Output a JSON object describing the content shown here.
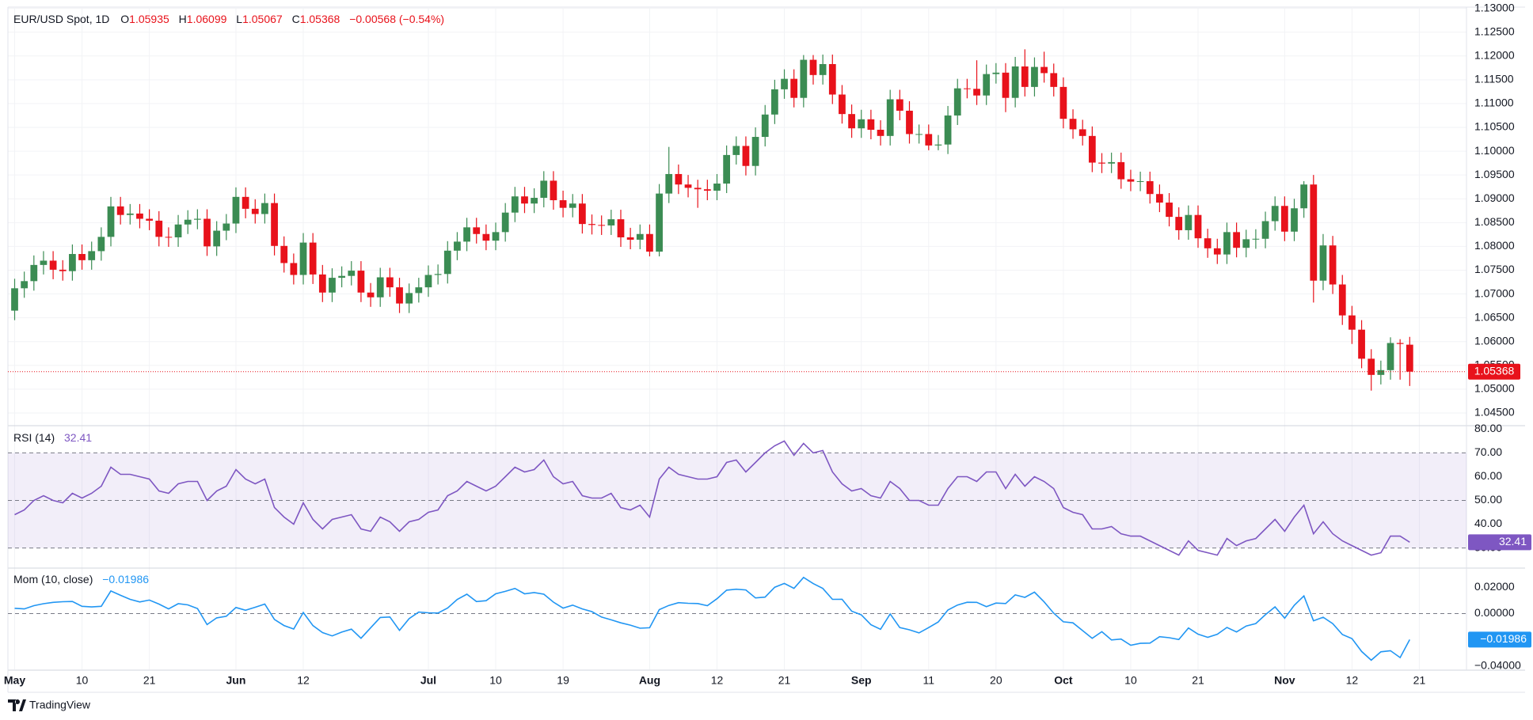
{
  "chart_data": {
    "type": "candlestick",
    "title": "EUR/USD Spot, 1D",
    "ohlc_labels": [
      "O",
      "H",
      "L",
      "C"
    ],
    "change_label": "−0.00568 (−0.54%)",
    "up_color": "#3b8c53",
    "down_color": "#e8121b",
    "grid": true,
    "open": [
      1.0665,
      1.0712,
      1.0727,
      1.0761,
      1.077,
      1.0751,
      1.0748,
      1.0784,
      1.0771,
      1.079,
      1.082,
      1.0884,
      1.0866,
      1.0869,
      1.0858,
      1.0854,
      1.082,
      1.0819,
      1.0846,
      1.0856,
      1.0858,
      1.08,
      1.0833,
      1.0848,
      1.0904,
      1.0879,
      1.0868,
      1.0891,
      1.0801,
      1.0765,
      1.074,
      1.0808,
      1.0741,
      1.0703,
      1.0734,
      1.0738,
      1.0749,
      1.0703,
      1.0693,
      1.0735,
      1.0714,
      1.068,
      1.0702,
      1.0714,
      1.074,
      1.0742,
      1.0791,
      1.081,
      1.084,
      1.0826,
      1.0812,
      1.083,
      1.0871,
      1.0905,
      1.089,
      1.0902,
      1.0938,
      1.0897,
      1.0881,
      1.089,
      1.0847,
      1.0845,
      1.0844,
      1.0857,
      1.0819,
      1.0814,
      1.0826,
      1.0789,
      1.0911,
      1.0952,
      1.093,
      1.0923,
      1.092,
      1.0917,
      1.0932,
      1.0992,
      1.1011,
      1.0969,
      1.103,
      1.1077,
      1.113,
      1.1152,
      1.1112,
      1.1192,
      1.116,
      1.1183,
      1.1119,
      1.1078,
      1.1048,
      1.1067,
      1.1045,
      1.1032,
      1.1109,
      1.1085,
      1.1036,
      1.1036,
      1.1012,
      1.1014,
      1.1075,
      1.1132,
      1.1131,
      1.1117,
      1.1162,
      1.1165,
      1.1112,
      1.1178,
      1.1135,
      1.1177,
      1.1164,
      1.1135,
      1.1068,
      1.1046,
      1.1032,
      1.0976,
      1.0974,
      1.0977,
      1.0941,
      1.0936,
      1.0937,
      1.091,
      1.0892,
      1.0862,
      1.0834,
      1.0866,
      1.0817,
      1.0796,
      1.0783,
      1.083,
      1.0797,
      1.0815,
      1.0816,
      1.0853,
      1.0885,
      1.0831,
      1.088,
      1.093,
      1.0728,
      1.0802,
      1.072,
      1.0655,
      1.0625,
      1.0564,
      1.053,
      1.054,
      1.0597,
      1.05935
    ],
    "high": [
      1.0732,
      1.0747,
      1.0781,
      1.079,
      1.079,
      1.0771,
      1.0804,
      1.0804,
      1.081,
      1.084,
      1.0904,
      1.0904,
      1.0889,
      1.0889,
      1.0878,
      1.0874,
      1.084,
      1.0866,
      1.0876,
      1.0878,
      1.0878,
      1.0853,
      1.0868,
      1.0924,
      1.0924,
      1.0899,
      1.0911,
      1.0911,
      1.0821,
      1.0785,
      1.0828,
      1.0828,
      1.0761,
      1.0754,
      1.0758,
      1.0769,
      1.0769,
      1.0723,
      1.0755,
      1.0755,
      1.0734,
      1.0722,
      1.0734,
      1.076,
      1.0762,
      1.0811,
      1.083,
      1.086,
      1.086,
      1.0846,
      1.085,
      1.0891,
      1.0925,
      1.0925,
      1.0922,
      1.0958,
      1.0958,
      1.0917,
      1.091,
      1.091,
      1.0867,
      1.0865,
      1.0877,
      1.0877,
      1.0839,
      1.0846,
      1.0846,
      1.0931,
      1.1009,
      1.0972,
      1.095,
      1.094,
      1.094,
      1.0952,
      1.1012,
      1.1031,
      1.1031,
      1.105,
      1.1097,
      1.115,
      1.1172,
      1.1172,
      1.1202,
      1.1202,
      1.1203,
      1.1203,
      1.1139,
      1.1098,
      1.1087,
      1.1087,
      1.1065,
      1.1129,
      1.1129,
      1.1105,
      1.1056,
      1.1056,
      1.1034,
      1.1095,
      1.1152,
      1.1152,
      1.1191,
      1.1182,
      1.1185,
      1.1185,
      1.1198,
      1.1214,
      1.1197,
      1.1209,
      1.1184,
      1.1155,
      1.1088,
      1.1066,
      1.1052,
      1.0996,
      1.0997,
      1.0997,
      1.0961,
      1.0957,
      1.0957,
      1.093,
      1.0912,
      1.0882,
      1.0886,
      1.0886,
      1.0837,
      1.0816,
      1.085,
      1.085,
      1.0835,
      1.0836,
      1.0873,
      1.0905,
      1.0905,
      1.09,
      1.0937,
      1.095,
      1.0826,
      1.0822,
      1.074,
      1.0675,
      1.0645,
      1.0584,
      1.056,
      1.0609,
      1.0605,
      1.06099
    ],
    "low": [
      1.0645,
      1.0692,
      1.0707,
      1.0741,
      1.0731,
      1.0728,
      1.0728,
      1.0751,
      1.0751,
      1.077,
      1.08,
      1.0846,
      1.0846,
      1.0838,
      1.0834,
      1.08,
      1.0799,
      1.0799,
      1.0826,
      1.0836,
      1.078,
      1.078,
      1.0813,
      1.0828,
      1.0859,
      1.0848,
      1.0848,
      1.0781,
      1.0745,
      1.072,
      1.072,
      1.0721,
      1.0683,
      1.0683,
      1.0714,
      1.0718,
      1.0683,
      1.0673,
      1.0673,
      1.0694,
      1.066,
      1.066,
      1.0682,
      1.0694,
      1.072,
      1.0722,
      1.0771,
      1.079,
      1.0806,
      1.0792,
      1.0792,
      1.081,
      1.0851,
      1.087,
      1.087,
      1.0882,
      1.0877,
      1.0861,
      1.0861,
      1.0827,
      1.0825,
      1.0824,
      1.0824,
      1.0799,
      1.0794,
      1.0794,
      1.0779,
      1.0779,
      1.0891,
      1.091,
      1.0903,
      1.0881,
      1.0897,
      1.0897,
      1.0912,
      1.0972,
      1.0949,
      1.0949,
      1.101,
      1.1057,
      1.111,
      1.1092,
      1.1092,
      1.114,
      1.114,
      1.1099,
      1.1058,
      1.1028,
      1.1028,
      1.1025,
      1.1012,
      1.1012,
      1.1065,
      1.1016,
      1.1016,
      1.1002,
      1.1002,
      1.0994,
      1.1055,
      1.1111,
      1.1097,
      1.1097,
      1.1142,
      1.1082,
      1.1092,
      1.1115,
      1.1115,
      1.1144,
      1.1115,
      1.1048,
      1.1026,
      1.1012,
      1.0956,
      1.0954,
      1.0954,
      1.0921,
      1.0916,
      1.0916,
      1.089,
      1.0872,
      1.0842,
      1.0814,
      1.0814,
      1.0797,
      1.0776,
      1.0763,
      1.0763,
      1.0777,
      1.0777,
      1.0795,
      1.0796,
      1.0833,
      1.0811,
      1.0811,
      1.086,
      1.0682,
      1.0708,
      1.07,
      1.0635,
      1.0595,
      1.0544,
      1.0497,
      1.051,
      1.052,
      1.052,
      1.05067
    ],
    "close": [
      1.0712,
      1.0727,
      1.0761,
      1.077,
      1.0751,
      1.0748,
      1.0784,
      1.0771,
      1.079,
      1.082,
      1.0884,
      1.0866,
      1.0869,
      1.0858,
      1.0854,
      1.082,
      1.0819,
      1.0846,
      1.0856,
      1.0858,
      1.08,
      1.0833,
      1.0848,
      1.0904,
      1.0879,
      1.0868,
      1.0891,
      1.0801,
      1.0765,
      1.074,
      1.0808,
      1.0741,
      1.0703,
      1.0734,
      1.0738,
      1.0749,
      1.0703,
      1.0693,
      1.0735,
      1.0714,
      1.068,
      1.0702,
      1.0714,
      1.074,
      1.0742,
      1.0791,
      1.081,
      1.084,
      1.0826,
      1.0812,
      1.083,
      1.0871,
      1.0905,
      1.089,
      1.0902,
      1.0938,
      1.0897,
      1.0881,
      1.089,
      1.0847,
      1.0845,
      1.0844,
      1.0857,
      1.0819,
      1.0814,
      1.0826,
      1.0789,
      1.0911,
      1.0952,
      1.093,
      1.0923,
      1.092,
      1.0917,
      1.0932,
      1.0992,
      1.1011,
      1.0969,
      1.103,
      1.1077,
      1.113,
      1.1152,
      1.1112,
      1.1192,
      1.116,
      1.1183,
      1.1119,
      1.1078,
      1.1048,
      1.1067,
      1.1045,
      1.1032,
      1.1109,
      1.1085,
      1.1036,
      1.1036,
      1.1012,
      1.1014,
      1.1075,
      1.1132,
      1.1131,
      1.1117,
      1.1162,
      1.1165,
      1.1112,
      1.1178,
      1.1135,
      1.1177,
      1.1164,
      1.1135,
      1.1068,
      1.1046,
      1.1032,
      1.0976,
      1.0974,
      1.0977,
      1.0941,
      1.0936,
      1.0937,
      1.091,
      1.0892,
      1.0862,
      1.0834,
      1.0866,
      1.0817,
      1.0796,
      1.0783,
      1.083,
      1.0797,
      1.0815,
      1.0816,
      1.0853,
      1.0885,
      1.0831,
      1.088,
      1.093,
      1.0728,
      1.0802,
      1.072,
      1.0655,
      1.0625,
      1.0564,
      1.053,
      1.054,
      1.0597,
      1.0595,
      1.05368
    ],
    "xlim": [
      -0.7,
      150.9
    ],
    "xticks": [
      {
        "value": 0,
        "label": "May"
      },
      {
        "value": 7,
        "label": "10"
      },
      {
        "value": 14,
        "label": "21"
      },
      {
        "value": 23,
        "label": "Jun"
      },
      {
        "value": 30,
        "label": "12"
      },
      {
        "value": 43,
        "label": "Jul"
      },
      {
        "value": 50,
        "label": "10"
      },
      {
        "value": 57,
        "label": "19"
      },
      {
        "value": 66,
        "label": "Aug"
      },
      {
        "value": 73,
        "label": "12"
      },
      {
        "value": 80,
        "label": "21"
      },
      {
        "value": 88,
        "label": "Sep"
      },
      {
        "value": 95,
        "label": "11"
      },
      {
        "value": 102,
        "label": "20"
      },
      {
        "value": 109,
        "label": "Oct"
      },
      {
        "value": 116,
        "label": "10"
      },
      {
        "value": 123,
        "label": "21"
      },
      {
        "value": 132,
        "label": "Nov"
      },
      {
        "value": 139,
        "label": "12"
      },
      {
        "value": 146,
        "label": "21"
      }
    ],
    "ylim": [
      1.0425,
      1.1301
    ],
    "yticks": [
      {
        "value": 1.045,
        "label": "1.04500"
      },
      {
        "value": 1.05,
        "label": "1.05000"
      },
      {
        "value": 1.055,
        "label": "1.05500"
      },
      {
        "value": 1.06,
        "label": "1.06000"
      },
      {
        "value": 1.065,
        "label": "1.06500"
      },
      {
        "value": 1.07,
        "label": "1.07000"
      },
      {
        "value": 1.075,
        "label": "1.07500"
      },
      {
        "value": 1.08,
        "label": "1.08000"
      },
      {
        "value": 1.085,
        "label": "1.08500"
      },
      {
        "value": 1.09,
        "label": "1.09000"
      },
      {
        "value": 1.095,
        "label": "1.09500"
      },
      {
        "value": 1.1,
        "label": "1.10000"
      },
      {
        "value": 1.105,
        "label": "1.10500"
      },
      {
        "value": 1.11,
        "label": "1.11000"
      },
      {
        "value": 1.115,
        "label": "1.11500"
      },
      {
        "value": 1.12,
        "label": "1.12000"
      },
      {
        "value": 1.125,
        "label": "1.12500"
      },
      {
        "value": 1.13,
        "label": "1.13000"
      }
    ],
    "indicators": [
      {
        "type": "line",
        "title": "RSI (14)",
        "color": "#7e57c2",
        "values": [
          44,
          46,
          50,
          52,
          50,
          49,
          53,
          51,
          53,
          56,
          64,
          61,
          61,
          60,
          59,
          54,
          53,
          57,
          58,
          58,
          50,
          54,
          56,
          63,
          59,
          57,
          59,
          47,
          43,
          40,
          49,
          42,
          38,
          42,
          43,
          44,
          38,
          37,
          43,
          41,
          37,
          41,
          42,
          45,
          46,
          52,
          54,
          58,
          56,
          54,
          56,
          60,
          64,
          62,
          63,
          67,
          60,
          57,
          58,
          52,
          51,
          51,
          53,
          47,
          46,
          48,
          43,
          59,
          64,
          61,
          60,
          59,
          59,
          60,
          66,
          67,
          62,
          66,
          70,
          73,
          75,
          69,
          74,
          70,
          71,
          62,
          57,
          54,
          55,
          52,
          51,
          58,
          55,
          50,
          50,
          48,
          48,
          55,
          60,
          60,
          58,
          62,
          62,
          55,
          61,
          56,
          60,
          58,
          55,
          47,
          45,
          44,
          38,
          38,
          39,
          36,
          35,
          35,
          33,
          31,
          29,
          27,
          33,
          29,
          28,
          27,
          34,
          31,
          33,
          34,
          38,
          42,
          37,
          43,
          48,
          36,
          41,
          36,
          33,
          31,
          29,
          27,
          28,
          35,
          35,
          32.41
        ],
        "ylim": [
          22.2,
          80.8
        ],
        "yticks": [
          {
            "value": 30,
            "label": "30.00"
          },
          {
            "value": 40,
            "label": "40.00"
          },
          {
            "value": 50,
            "label": "50.00"
          },
          {
            "value": 60,
            "label": "60.00"
          },
          {
            "value": 70,
            "label": "70.00"
          },
          {
            "value": 80,
            "label": "80.00"
          }
        ],
        "levels": [
          30,
          50,
          70
        ],
        "band": [
          30,
          70
        ]
      },
      {
        "type": "line",
        "title": "Mom (10, close)",
        "color": "#2196f3",
        "values": [
          0.004,
          0.0035,
          0.006,
          0.0075,
          0.0085,
          0.009,
          0.0092,
          0.0055,
          0.005,
          0.0055,
          0.0172,
          0.0139,
          0.0108,
          0.0088,
          0.0103,
          0.0072,
          0.0035,
          0.0075,
          0.0066,
          0.0038,
          -0.0084,
          -0.0033,
          -0.0021,
          0.0046,
          0.0025,
          0.0048,
          0.0072,
          -0.0045,
          -0.0091,
          -0.0118,
          0.0008,
          -0.0092,
          -0.0145,
          -0.017,
          -0.0141,
          -0.0119,
          -0.0188,
          -0.0108,
          -0.003,
          -0.0026,
          -0.0128,
          -0.0039,
          0.0011,
          0.0006,
          0.0004,
          0.0042,
          0.0107,
          0.0147,
          0.0091,
          0.0098,
          0.015,
          0.0169,
          0.0191,
          0.015,
          0.016,
          0.0147,
          0.0087,
          0.0041,
          0.0064,
          0.0035,
          0.0015,
          -0.0027,
          -0.0048,
          -0.0071,
          -0.0088,
          -0.0112,
          -0.0108,
          0.003,
          0.0062,
          0.0083,
          0.0078,
          0.0076,
          0.006,
          0.0113,
          0.0178,
          0.0185,
          0.018,
          0.0119,
          0.0125,
          0.02,
          0.0229,
          0.0192,
          0.0275,
          0.0228,
          0.0191,
          0.0108,
          0.0109,
          0.0018,
          -0.001,
          -0.0085,
          -0.012,
          -0.0003,
          -0.0107,
          -0.0124,
          -0.0147,
          -0.0107,
          -0.0064,
          0.0027,
          0.0065,
          0.0086,
          0.0085,
          0.0053,
          0.008,
          0.0076,
          0.0142,
          0.0123,
          0.0163,
          0.0089,
          0.0003,
          -0.0063,
          -0.0071,
          -0.013,
          -0.0189,
          -0.0138,
          -0.0201,
          -0.0194,
          -0.0241,
          -0.0227,
          -0.0225,
          -0.0176,
          -0.0184,
          -0.0198,
          -0.011,
          -0.0157,
          -0.0181,
          -0.0158,
          -0.0106,
          -0.014,
          -0.0095,
          -0.0076,
          -0.0009,
          0.0051,
          -0.0035,
          0.0063,
          0.0134,
          -0.0055,
          -0.0028,
          -0.0077,
          -0.016,
          -0.0191,
          -0.0289,
          -0.0355,
          -0.0291,
          -0.0283,
          -0.0335,
          -0.01986
        ],
        "last_label": "−0.01986",
        "ylim": [
          -0.0425,
          0.0328
        ],
        "yticks": [
          {
            "value": 0.02,
            "label": "0.02000"
          },
          {
            "value": 0,
            "label": "0.00000"
          },
          {
            "value": -0.04,
            "label": "−0.04000"
          }
        ],
        "levels": [
          0
        ]
      }
    ],
    "watermark": "TradingView"
  }
}
